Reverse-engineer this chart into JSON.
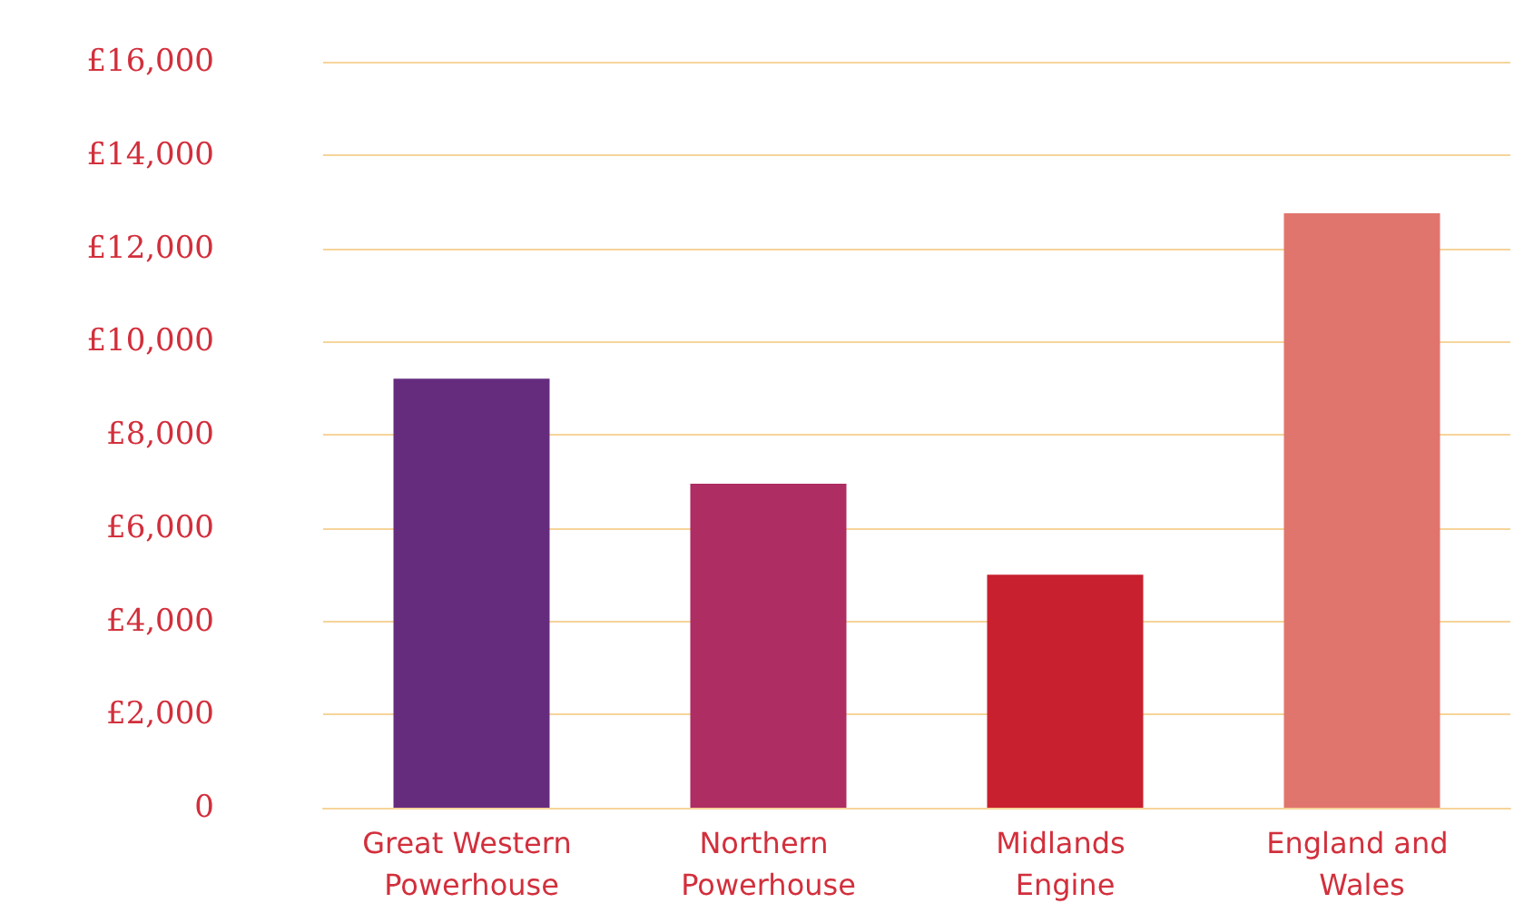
{
  "chart_data": {
    "type": "bar",
    "categories": [
      "Great Western Powerhouse",
      "Northern Powerhouse",
      "Midlands Engine",
      "England and Wales"
    ],
    "values": [
      9200,
      6950,
      5000,
      12750
    ],
    "colors": [
      "#652c7e",
      "#ae2d62",
      "#c8202e",
      "#e0756d"
    ],
    "ylim": [
      0,
      16000
    ],
    "yticks": [
      {
        "value": 0,
        "label": "0"
      },
      {
        "value": 2000,
        "label": "£2,000"
      },
      {
        "value": 4000,
        "label": "£4,000"
      },
      {
        "value": 6000,
        "label": "£6,000"
      },
      {
        "value": 8000,
        "label": "£8,000"
      },
      {
        "value": 10000,
        "label": "£10,000"
      },
      {
        "value": 12000,
        "label": "£12,000"
      },
      {
        "value": 14000,
        "label": "£14,000"
      },
      {
        "value": 16000,
        "label": "£16,000"
      }
    ],
    "grid": true
  }
}
